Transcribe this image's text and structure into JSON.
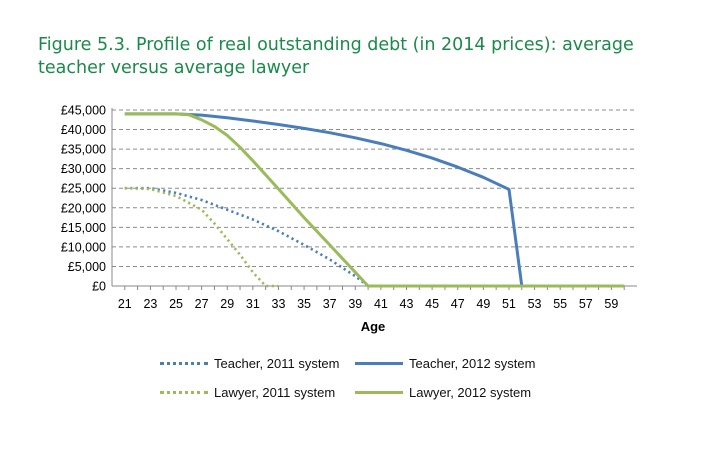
{
  "title": "Figure 5.3. Profile of real outstanding debt (in 2014 prices): average teacher versus average lawyer",
  "chart_data": {
    "type": "line",
    "xlabel": "Age",
    "ylabel": "",
    "xlim": [
      21,
      60
    ],
    "ylim": [
      0,
      45000
    ],
    "x_ticks": [
      21,
      23,
      25,
      27,
      29,
      31,
      33,
      35,
      37,
      39,
      41,
      43,
      45,
      47,
      49,
      51,
      53,
      55,
      57,
      59
    ],
    "y_ticks": [
      0,
      5000,
      10000,
      15000,
      20000,
      25000,
      30000,
      35000,
      40000,
      45000
    ],
    "y_tick_labels": [
      "£0",
      "£5,000",
      "£10,000",
      "£15,000",
      "£20,000",
      "£25,000",
      "£30,000",
      "£35,000",
      "£40,000",
      "£45,000"
    ],
    "grid": "horizontal dashed",
    "legend_position": "bottom",
    "series": [
      {
        "name": "Teacher, 2011 system",
        "color": "#4a7ebb",
        "style": "dotted",
        "x": [
          21,
          23,
          25,
          27,
          29,
          31,
          33,
          35,
          37,
          39,
          40
        ],
        "y": [
          25000,
          25000,
          23800,
          22000,
          19500,
          17000,
          14000,
          10500,
          6800,
          2500,
          0
        ]
      },
      {
        "name": "Teacher, 2012 system",
        "color": "#4a7ebb",
        "style": "solid",
        "x": [
          21,
          25,
          27,
          29,
          31,
          33,
          35,
          37,
          39,
          41,
          43,
          45,
          47,
          49,
          51,
          52,
          60
        ],
        "y": [
          44000,
          44000,
          43700,
          43000,
          42200,
          41300,
          40300,
          39200,
          37900,
          36400,
          34700,
          32700,
          30400,
          27800,
          24700,
          0,
          0
        ]
      },
      {
        "name": "Lawyer, 2011 system",
        "color": "#9bbb59",
        "style": "dotted",
        "x": [
          21,
          23,
          25,
          27,
          28,
          29,
          30,
          31,
          32,
          33
        ],
        "y": [
          25000,
          24800,
          23000,
          19500,
          16000,
          12000,
          8000,
          3500,
          0,
          0
        ]
      },
      {
        "name": "Lawyer, 2012 system",
        "color": "#9bbb59",
        "style": "solid",
        "x": [
          21,
          25,
          26,
          27,
          28,
          29,
          30,
          31,
          33,
          35,
          37,
          39,
          40,
          41,
          43,
          60
        ],
        "y": [
          44000,
          44000,
          43800,
          42500,
          40800,
          38500,
          35500,
          32000,
          24800,
          17500,
          10500,
          3500,
          0,
          0,
          0,
          0
        ]
      }
    ]
  }
}
